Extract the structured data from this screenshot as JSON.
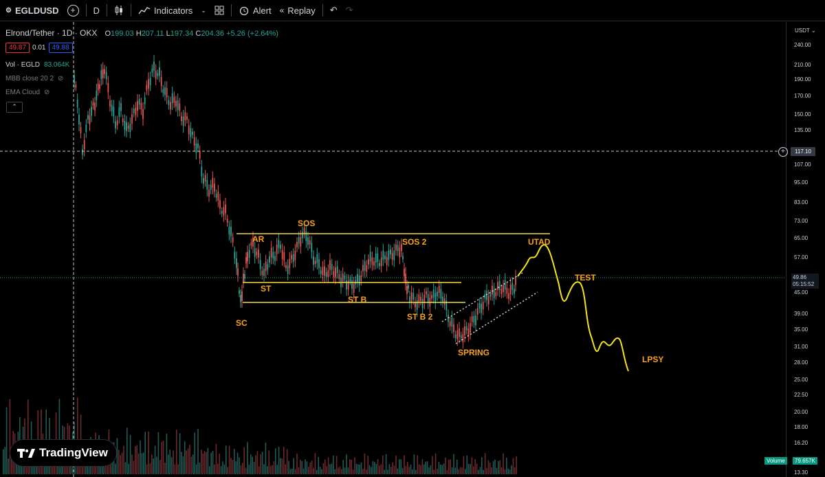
{
  "toolbar": {
    "symbol": "EGLDUSD",
    "interval": "D",
    "indicators_label": "Indicators",
    "alert_label": "Alert",
    "replay_label": "Replay"
  },
  "legend": {
    "title": "Elrond/Tether · 1D · OKX",
    "open_label": "O",
    "open": "199.03",
    "high_label": "H",
    "high": "207.11",
    "low_label": "L",
    "low": "197.34",
    "close_label": "C",
    "close": "204.36",
    "change": "+5.26 (+2.64%)",
    "bid": "49.87",
    "spread": "0.01",
    "ask": "49.88",
    "volume_label": "Vol · EGLD",
    "volume_value": "83.064K",
    "indicator_1": "MBB close 20 2",
    "indicator_2": "EMA Cloud"
  },
  "price_axis": {
    "currency": "USDT",
    "ticks": [
      "240.00",
      "210.00",
      "190.00",
      "170.00",
      "150.00",
      "135.00",
      "107.00",
      "95.00",
      "83.00",
      "73.00",
      "65.00",
      "57.00",
      "45.00",
      "39.00",
      "35.00",
      "31.00",
      "28.00",
      "25.00",
      "22.50",
      "20.00",
      "18.00",
      "16.20",
      "13.30"
    ],
    "crosshair_price": "117.10",
    "last_price": "49.86",
    "countdown": "05:15:52",
    "volume_tag": "Volume",
    "volume_value": "79.657K"
  },
  "annotations": [
    "SOS",
    "AR",
    "SOS 2",
    "UTAD",
    "ST",
    "TEST",
    "ST B",
    "SC",
    "ST B 2",
    "SPRING",
    "LPSY"
  ],
  "brand": "TradingView",
  "colors": {
    "up": "#26a69a",
    "down": "#ef5350",
    "level_lines": "#f5d742",
    "annotation": "#f7a51c",
    "projection": "#f5e61c"
  }
}
